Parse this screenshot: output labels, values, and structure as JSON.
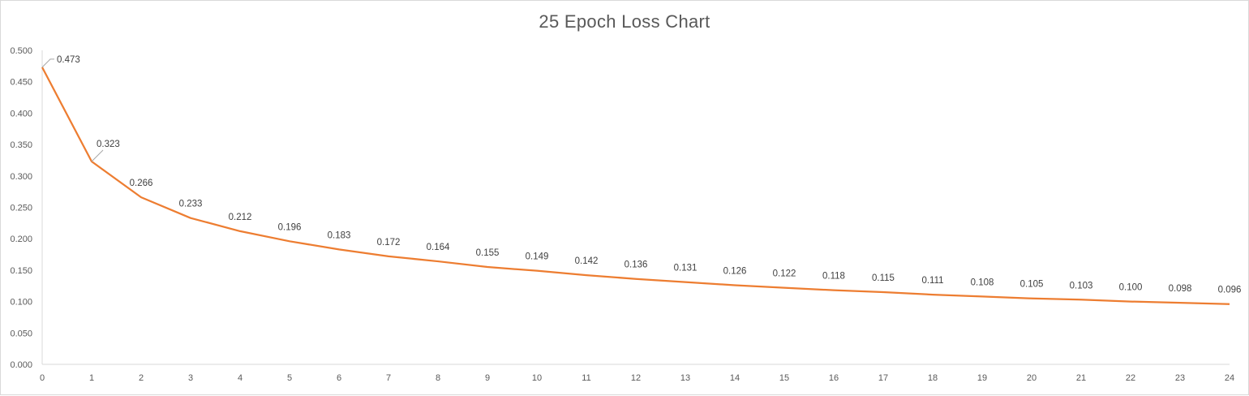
{
  "chart_data": {
    "type": "line",
    "title": "25 Epoch Loss Chart",
    "xlabel": "",
    "ylabel": "",
    "x": [
      0,
      1,
      2,
      3,
      4,
      5,
      6,
      7,
      8,
      9,
      10,
      11,
      12,
      13,
      14,
      15,
      16,
      17,
      18,
      19,
      20,
      21,
      22,
      23,
      24
    ],
    "series": [
      {
        "color": "#ed7d31",
        "values": [
          0.473,
          0.323,
          0.266,
          0.233,
          0.212,
          0.196,
          0.183,
          0.172,
          0.164,
          0.155,
          0.149,
          0.142,
          0.136,
          0.131,
          0.126,
          0.122,
          0.118,
          0.115,
          0.111,
          0.108,
          0.105,
          0.103,
          0.1,
          0.098,
          0.096
        ],
        "labels": [
          "0.473",
          "0.323",
          "0.266",
          "0.233",
          "0.212",
          "0.196",
          "0.183",
          "0.172",
          "0.164",
          "0.155",
          "0.149",
          "0.142",
          "0.136",
          "0.131",
          "0.126",
          "0.122",
          "0.118",
          "0.115",
          "0.111",
          "0.108",
          "0.105",
          "0.103",
          "0.100",
          "0.098",
          "0.096"
        ]
      }
    ],
    "ylim": [
      0,
      0.5
    ],
    "y_ticks": [
      "0.000",
      "0.050",
      "0.100",
      "0.150",
      "0.200",
      "0.250",
      "0.300",
      "0.350",
      "0.400",
      "0.450",
      "0.500"
    ],
    "x_ticks": [
      "0",
      "1",
      "2",
      "3",
      "4",
      "5",
      "6",
      "7",
      "8",
      "9",
      "10",
      "11",
      "12",
      "13",
      "14",
      "15",
      "16",
      "17",
      "18",
      "19",
      "20",
      "21",
      "22",
      "23",
      "24"
    ],
    "grid": false,
    "legend": "none",
    "axis_color": "#d9d9d9"
  }
}
